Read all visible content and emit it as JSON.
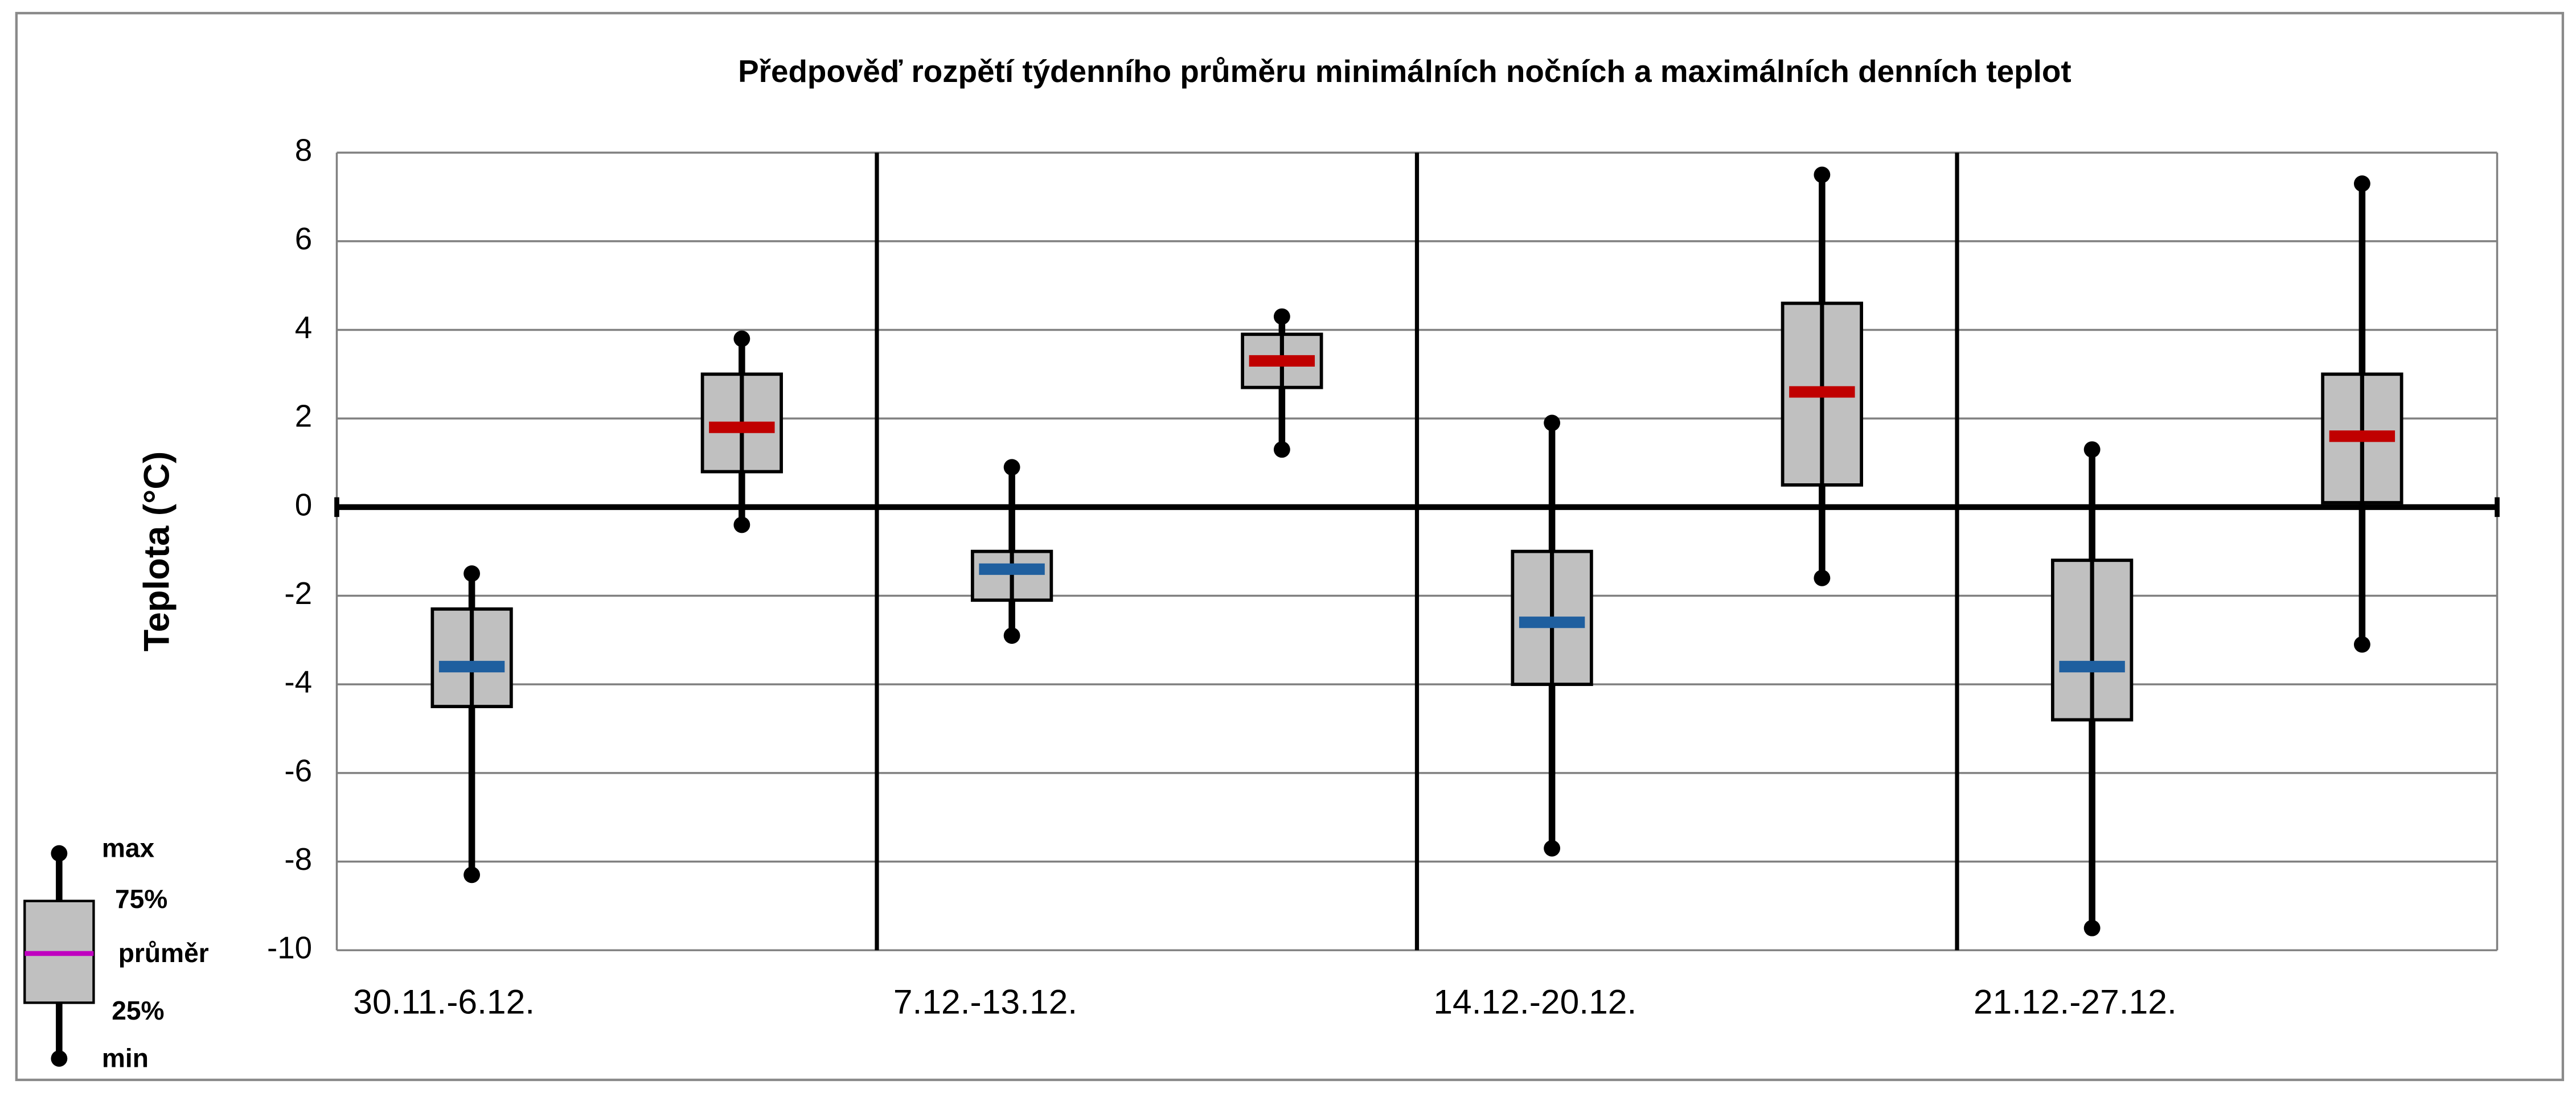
{
  "chart_data": {
    "type": "box",
    "title": "Předpověď rozpětí týdenního průměru minimálních nočních a maximálních denních teplot",
    "ylabel": "Teplota (°C)",
    "categories": [
      "30.11.-6.12.",
      "7.12.-13.12.",
      "14.12.-20.12.",
      "21.12.-27.12."
    ],
    "ylim": [
      -10,
      8
    ],
    "yticks": [
      -10,
      -8,
      -6,
      -4,
      -2,
      0,
      2,
      4,
      6,
      8
    ],
    "grid": true,
    "box_color": "#c0c0c0",
    "series": [
      {
        "color": "#1f5f9f",
        "min": [
          -8.3,
          -2.9,
          -7.7,
          -9.5
        ],
        "q1": [
          -4.5,
          -2.1,
          -4.0,
          -4.8
        ],
        "mean": [
          -3.6,
          -1.4,
          -2.6,
          -3.6
        ],
        "q3": [
          -2.3,
          -1.0,
          -1.0,
          -1.2
        ],
        "max": [
          -1.5,
          0.9,
          1.9,
          1.3
        ]
      },
      {
        "color": "#c00000",
        "min": [
          -0.4,
          1.3,
          -1.6,
          -3.1
        ],
        "q1": [
          0.8,
          2.7,
          0.5,
          0.1
        ],
        "mean": [
          1.8,
          3.3,
          2.6,
          1.6
        ],
        "q3": [
          3.0,
          3.9,
          4.6,
          3.0
        ],
        "max": [
          3.8,
          4.3,
          7.5,
          7.3
        ]
      }
    ],
    "legend_labels": {
      "max": "max",
      "q3": "75%",
      "mean": "průměr",
      "q1": "25%",
      "min": "min"
    }
  }
}
